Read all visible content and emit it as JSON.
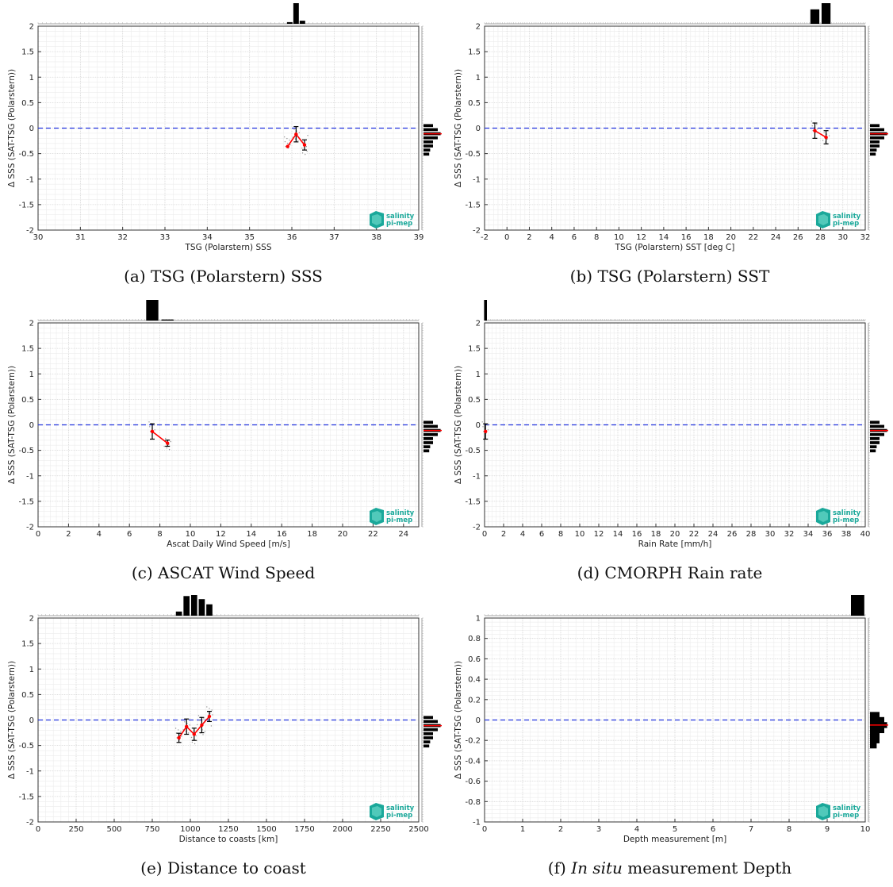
{
  "logo": {
    "line1": "salinity",
    "line2": "pi-mep"
  },
  "colors": {
    "zero_line": "#2233dd",
    "mean_line": "#ff0000",
    "error_bar": "#000000",
    "histogram": "#000000",
    "median_mark": "#ff0000",
    "scatter": "#999999",
    "logo": "#1aa89a"
  },
  "panels": [
    {
      "caption_label": "(a)",
      "caption_title": "TSG (Polarstern) SSS",
      "caption_italic": "",
      "chart_data": {
        "type": "scatter",
        "xlabel": "TSG (Polarstern) SSS",
        "ylabel": "Δ SSS (SAT-TSG (Polarstern))",
        "xlim": [
          30,
          39
        ],
        "ylim": [
          -2,
          2
        ],
        "xticks": [
          30,
          31,
          32,
          33,
          34,
          35,
          36,
          37,
          38,
          39
        ],
        "yticks": [
          -2,
          -1.5,
          -1,
          -0.5,
          0,
          0.5,
          1,
          1.5,
          2
        ],
        "ytick_labels": [
          "-2",
          "-1.5",
          "-1",
          "-0.5",
          "0",
          "0.5",
          "1",
          "1.5",
          "2"
        ],
        "zero_line": 0,
        "grid": true,
        "mean_points": [
          {
            "x": 35.9,
            "y": -0.36,
            "err": 0
          },
          {
            "x": 36.1,
            "y": -0.12,
            "err": 0.15
          },
          {
            "x": 36.3,
            "y": -0.33,
            "err": 0.1
          }
        ],
        "top_histogram": [
          {
            "x": 35.95,
            "h": 0.08
          },
          {
            "x": 36.1,
            "h": 1.0
          },
          {
            "x": 36.25,
            "h": 0.15
          }
        ],
        "top_histogram_bin_width": 0.13,
        "right_histogram": [
          {
            "y": 0.05,
            "w": 0.5
          },
          {
            "y": -0.03,
            "w": 0.75
          },
          {
            "y": -0.11,
            "w": 0.9
          },
          {
            "y": -0.19,
            "w": 0.75
          },
          {
            "y": -0.27,
            "w": 0.5
          },
          {
            "y": -0.35,
            "w": 0.5
          },
          {
            "y": -0.43,
            "w": 0.35
          },
          {
            "y": -0.51,
            "w": 0.3
          }
        ],
        "right_histogram_median": -0.11
      }
    },
    {
      "caption_label": "(b)",
      "caption_title": "TSG (Polarstern) SST",
      "caption_italic": "",
      "chart_data": {
        "type": "scatter",
        "xlabel": "TSG (Polarstern) SST [deg C]",
        "ylabel": "Δ SSS (SAT-TSG (Polarstern))",
        "xlim": [
          -2,
          32
        ],
        "ylim": [
          -2,
          2
        ],
        "xticks": [
          -2,
          0,
          2,
          4,
          6,
          8,
          10,
          12,
          14,
          16,
          18,
          20,
          22,
          24,
          26,
          28,
          30,
          32
        ],
        "yticks": [
          -2,
          -1.5,
          -1,
          -0.5,
          0,
          0.5,
          1,
          1.5,
          2
        ],
        "ytick_labels": [
          "-2",
          "-1.5",
          "-1",
          "-0.5",
          "0",
          "0.5",
          "1",
          "1.5",
          "2"
        ],
        "zero_line": 0,
        "grid": true,
        "mean_points": [
          {
            "x": 27.5,
            "y": -0.05,
            "err": 0.15
          },
          {
            "x": 28.5,
            "y": -0.18,
            "err": 0.13
          }
        ],
        "top_histogram": [
          {
            "x": 27.5,
            "h": 0.7
          },
          {
            "x": 28.5,
            "h": 1.0
          }
        ],
        "top_histogram_bin_width": 0.8,
        "right_histogram": [
          {
            "y": 0.05,
            "w": 0.5
          },
          {
            "y": -0.03,
            "w": 0.75
          },
          {
            "y": -0.11,
            "w": 0.9
          },
          {
            "y": -0.19,
            "w": 0.75
          },
          {
            "y": -0.27,
            "w": 0.5
          },
          {
            "y": -0.35,
            "w": 0.5
          },
          {
            "y": -0.43,
            "w": 0.35
          },
          {
            "y": -0.51,
            "w": 0.3
          }
        ],
        "right_histogram_median": -0.11
      }
    },
    {
      "caption_label": "(c)",
      "caption_title": "ASCAT Wind Speed",
      "caption_italic": "",
      "chart_data": {
        "type": "scatter",
        "xlabel": "Ascat Daily Wind Speed [m/s]",
        "ylabel": "Δ SSS (SAT-TSG (Polarstern))",
        "xlim": [
          0,
          25
        ],
        "ylim": [
          -2,
          2
        ],
        "xticks": [
          0,
          2,
          4,
          6,
          8,
          10,
          12,
          14,
          16,
          18,
          20,
          22,
          24
        ],
        "yticks": [
          -2,
          -1.5,
          -1,
          -0.5,
          0,
          0.5,
          1,
          1.5,
          2
        ],
        "ytick_labels": [
          "-2",
          "-1.5",
          "-1",
          "-0.5",
          "0",
          "0.5",
          "1",
          "1.5",
          "2"
        ],
        "zero_line": 0,
        "grid": true,
        "mean_points": [
          {
            "x": 7.5,
            "y": -0.13,
            "err": 0.15
          },
          {
            "x": 8.5,
            "y": -0.36,
            "err": 0.06
          }
        ],
        "top_histogram": [
          {
            "x": 7.5,
            "h": 1.0
          },
          {
            "x": 8.5,
            "h": 0.05
          }
        ],
        "top_histogram_bin_width": 0.8,
        "right_histogram": [
          {
            "y": 0.05,
            "w": 0.5
          },
          {
            "y": -0.03,
            "w": 0.75
          },
          {
            "y": -0.11,
            "w": 0.9
          },
          {
            "y": -0.19,
            "w": 0.75
          },
          {
            "y": -0.27,
            "w": 0.5
          },
          {
            "y": -0.35,
            "w": 0.5
          },
          {
            "y": -0.43,
            "w": 0.35
          },
          {
            "y": -0.51,
            "w": 0.3
          }
        ],
        "right_histogram_median": -0.11
      }
    },
    {
      "caption_label": "(d)",
      "caption_title": "CMORPH Rain rate",
      "caption_italic": "",
      "chart_data": {
        "type": "scatter",
        "xlabel": "Rain Rate [mm/h]",
        "ylabel": "Δ SSS (SAT-TSG (Polarstern))",
        "xlim": [
          0,
          40
        ],
        "ylim": [
          -2,
          2
        ],
        "xticks": [
          0,
          2,
          4,
          6,
          8,
          10,
          12,
          14,
          16,
          18,
          20,
          22,
          24,
          26,
          28,
          30,
          32,
          34,
          36,
          38,
          40
        ],
        "yticks": [
          -2,
          -1.5,
          -1,
          -0.5,
          0,
          0.5,
          1,
          1.5,
          2
        ],
        "ytick_labels": [
          "-2",
          "-1.5",
          "-1",
          "-0.5",
          "0",
          "0.5",
          "1",
          "1.5",
          "2"
        ],
        "zero_line": 0,
        "grid": true,
        "mean_points": [
          {
            "x": 0.1,
            "y": -0.13,
            "err": 0.15
          }
        ],
        "top_histogram": [
          {
            "x": 0.1,
            "h": 1.0
          }
        ],
        "top_histogram_bin_width": 0.3,
        "right_histogram": [
          {
            "y": 0.05,
            "w": 0.5
          },
          {
            "y": -0.03,
            "w": 0.75
          },
          {
            "y": -0.11,
            "w": 0.9
          },
          {
            "y": -0.19,
            "w": 0.75
          },
          {
            "y": -0.27,
            "w": 0.5
          },
          {
            "y": -0.35,
            "w": 0.5
          },
          {
            "y": -0.43,
            "w": 0.35
          },
          {
            "y": -0.51,
            "w": 0.3
          }
        ],
        "right_histogram_median": -0.11
      }
    },
    {
      "caption_label": "(e)",
      "caption_title": "Distance to coast",
      "caption_italic": "",
      "chart_data": {
        "type": "scatter",
        "xlabel": "Distance to coasts [km]",
        "ylabel": "Δ SSS (SAT-TSG (Polarstern))",
        "xlim": [
          0,
          2500
        ],
        "ylim": [
          -2,
          2
        ],
        "xticks": [
          0,
          250,
          500,
          750,
          1000,
          1250,
          1500,
          1750,
          2000,
          2250,
          2500
        ],
        "yticks": [
          -2,
          -1.5,
          -1,
          -0.5,
          0,
          0.5,
          1,
          1.5,
          2
        ],
        "ytick_labels": [
          "-2",
          "-1.5",
          "-1",
          "-0.5",
          "0",
          "0.5",
          "1",
          "1.5",
          "2"
        ],
        "zero_line": 0,
        "grid": true,
        "mean_points": [
          {
            "x": 925,
            "y": -0.35,
            "err": 0.09
          },
          {
            "x": 975,
            "y": -0.13,
            "err": 0.15
          },
          {
            "x": 1025,
            "y": -0.28,
            "err": 0.12
          },
          {
            "x": 1075,
            "y": -0.1,
            "err": 0.15
          },
          {
            "x": 1125,
            "y": 0.07,
            "err": 0.1
          }
        ],
        "top_histogram": [
          {
            "x": 925,
            "h": 0.2
          },
          {
            "x": 975,
            "h": 0.95
          },
          {
            "x": 1025,
            "h": 1.0
          },
          {
            "x": 1075,
            "h": 0.8
          },
          {
            "x": 1125,
            "h": 0.55
          }
        ],
        "top_histogram_bin_width": 40,
        "right_histogram": [
          {
            "y": 0.05,
            "w": 0.5
          },
          {
            "y": -0.03,
            "w": 0.75
          },
          {
            "y": -0.11,
            "w": 0.9
          },
          {
            "y": -0.19,
            "w": 0.75
          },
          {
            "y": -0.27,
            "w": 0.5
          },
          {
            "y": -0.35,
            "w": 0.5
          },
          {
            "y": -0.43,
            "w": 0.35
          },
          {
            "y": -0.51,
            "w": 0.3
          }
        ],
        "right_histogram_median": -0.11
      }
    },
    {
      "caption_label": "(f)",
      "caption_title": "measurement Depth",
      "caption_italic": "In situ",
      "chart_data": {
        "type": "scatter",
        "xlabel": "Depth measurement [m]",
        "ylabel": "Δ SSS (SAT-TSG (Polarstern))",
        "xlim": [
          0,
          10
        ],
        "ylim": [
          -1,
          1
        ],
        "xticks": [
          0,
          1,
          2,
          3,
          4,
          5,
          6,
          7,
          8,
          9,
          10
        ],
        "yticks": [
          -1,
          -0.8,
          -0.6,
          -0.4,
          -0.2,
          0,
          0.2,
          0.4,
          0.6,
          0.8,
          1
        ],
        "ytick_labels": [
          "-1",
          "-0.8",
          "-0.6",
          "-0.4",
          "-0.2",
          "0",
          "0.2",
          "0.4",
          "0.6",
          "0.8",
          "1"
        ],
        "zero_line": 0,
        "grid": true,
        "mean_points": [],
        "top_histogram": [
          {
            "x": 9.8,
            "h": 1.0
          }
        ],
        "top_histogram_bin_width": 0.35,
        "right_histogram": [
          {
            "y": 0.05,
            "w": 0.5
          },
          {
            "y": 0.0,
            "w": 0.75
          },
          {
            "y": -0.05,
            "w": 0.9
          },
          {
            "y": -0.1,
            "w": 0.75
          },
          {
            "y": -0.15,
            "w": 0.5
          },
          {
            "y": -0.2,
            "w": 0.5
          },
          {
            "y": -0.25,
            "w": 0.35
          }
        ],
        "right_histogram_median": -0.05
      }
    }
  ]
}
